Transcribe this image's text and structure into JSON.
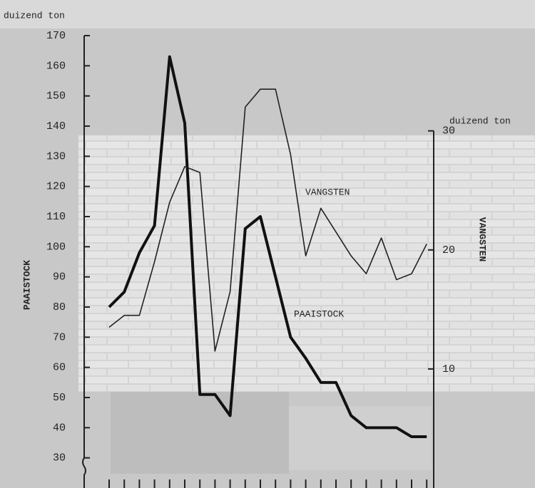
{
  "chart_data": {
    "type": "line",
    "y_label": "duizend ton",
    "y2_label": "duizend ton",
    "y_axis_title": "PAAISTOCK",
    "y2_axis_title": "VANGSTEN",
    "annotations": [
      "VANGSTEN",
      "PAAISTOCK"
    ],
    "categories": [
      null,
      null,
      null,
      null,
      null,
      null,
      null,
      null,
      null,
      null,
      null,
      null,
      null,
      null,
      null,
      null,
      null,
      null,
      null,
      null,
      null,
      null
    ],
    "series": [
      {
        "name": "PAAISTOCK",
        "color": "#111111",
        "width": 4,
        "values": [
          80,
          85,
          98,
          107,
          163,
          141,
          51,
          51,
          44,
          106,
          110,
          90,
          70,
          63,
          55,
          55,
          44,
          40,
          40,
          40,
          37,
          37
        ]
      },
      {
        "name": "VANGSTEN",
        "color": "#222222",
        "width": 1.6,
        "axis": "y2",
        "values": [
          13.5,
          14.5,
          14.5,
          19,
          24,
          27,
          26.5,
          11.5,
          16.5,
          32,
          33.5,
          33.5,
          28,
          19.5,
          23.5,
          21.5,
          19.5,
          18,
          21,
          17.5,
          18,
          20.5
        ]
      }
    ],
    "ylim": [
      20,
      170
    ],
    "yticks": [
      30,
      40,
      50,
      60,
      70,
      80,
      90,
      100,
      110,
      120,
      130,
      140,
      150,
      160,
      170
    ],
    "y2lim": [
      0,
      38
    ],
    "y2ticks": [
      10,
      20,
      30
    ]
  }
}
